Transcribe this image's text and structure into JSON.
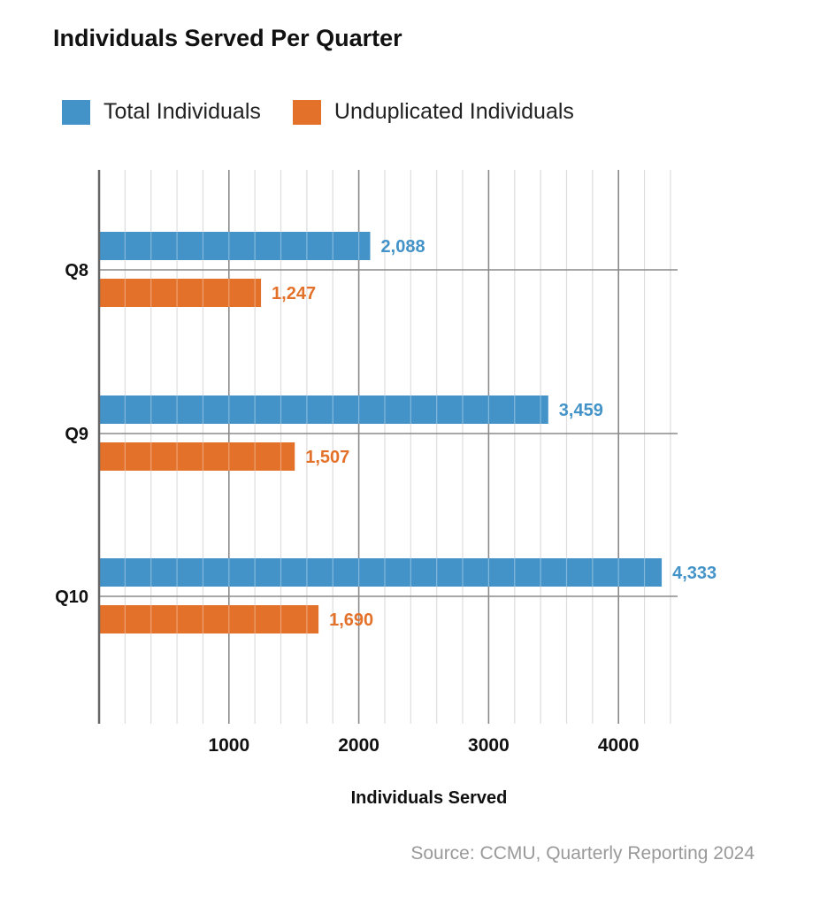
{
  "chart_data": {
    "type": "bar",
    "orientation": "horizontal",
    "title": "Individuals Served Per Quarter",
    "xlabel": "Individuals Served",
    "ylabel": "",
    "categories": [
      "Q8",
      "Q9",
      "Q10"
    ],
    "series": [
      {
        "name": "Total Individuals",
        "values": [
          2088,
          3459,
          4333
        ],
        "labels": [
          "2,088",
          "3,459",
          "4,333"
        ],
        "color": "#4393c8"
      },
      {
        "name": "Unduplicated Individuals",
        "values": [
          1247,
          1507,
          1690
        ],
        "labels": [
          "1,247",
          "1,507",
          "1,690"
        ],
        "color": "#e3712a"
      }
    ],
    "xlim": [
      0,
      4450
    ],
    "xticks": [
      1000,
      2000,
      3000,
      4000
    ],
    "xtick_labels": [
      "1000",
      "2000",
      "3000",
      "4000"
    ],
    "grid": true,
    "legend_position": "top-left",
    "source": "Source: CCMU, Quarterly Reporting 2024"
  },
  "colors": {
    "total": "#4393c8",
    "unduplicated": "#e3712a"
  }
}
